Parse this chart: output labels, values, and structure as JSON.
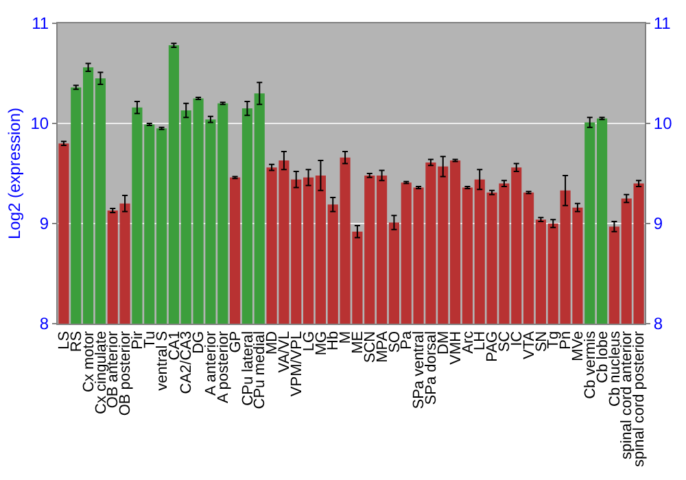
{
  "chart_data": {
    "type": "bar",
    "ylabel": "Log2 (expression)",
    "categories": [
      "LS",
      "RS",
      "Cx motor",
      "Cx cingulate",
      "OB anterior",
      "OB posterior",
      "Pir",
      "Tu",
      "ventral S",
      "CA1",
      "CA2/CA3",
      "DG",
      "A anterior",
      "A posterior",
      "GP",
      "CPu lateral",
      "CPu medial",
      "MD",
      "VA/VL",
      "VPM/VPL",
      "LG",
      "MG",
      "Hb",
      "M",
      "ME",
      "SCN",
      "MPA",
      "SO",
      "Pa",
      "SPa ventral",
      "SPa dorsal",
      "DM",
      "VMH",
      "Arc",
      "LH",
      "PAG",
      "SC",
      "IC",
      "VTA",
      "SN",
      "Tg",
      "Pn",
      "MVe",
      "Cb vermis",
      "Cb lobe",
      "Cb nucleus",
      "spinal cord anterior",
      "spinal cord posterior"
    ],
    "values": [
      9.8,
      10.36,
      10.56,
      10.45,
      9.13,
      9.2,
      10.16,
      9.99,
      9.95,
      10.78,
      10.13,
      10.25,
      10.04,
      10.2,
      9.46,
      10.15,
      10.3,
      9.56,
      9.63,
      9.44,
      9.46,
      9.48,
      9.19,
      9.66,
      8.92,
      9.48,
      9.48,
      9.01,
      9.41,
      9.36,
      9.61,
      9.57,
      9.63,
      9.36,
      9.44,
      9.31,
      9.4,
      9.56,
      9.31,
      9.04,
      9.0,
      9.33,
      9.16,
      10.01,
      10.05,
      8.97,
      9.25,
      9.4
    ],
    "errors": [
      0.02,
      0.02,
      0.04,
      0.06,
      0.02,
      0.08,
      0.06,
      0.01,
      0.01,
      0.02,
      0.07,
      0.01,
      0.03,
      0.01,
      0.01,
      0.07,
      0.11,
      0.03,
      0.09,
      0.08,
      0.08,
      0.15,
      0.07,
      0.06,
      0.06,
      0.02,
      0.05,
      0.07,
      0.01,
      0.01,
      0.03,
      0.1,
      0.01,
      0.01,
      0.1,
      0.02,
      0.03,
      0.04,
      0.01,
      0.02,
      0.04,
      0.15,
      0.04,
      0.05,
      0.01,
      0.05,
      0.04,
      0.03
    ],
    "colors": [
      "#b83232",
      "#3c9e3c",
      "#3c9e3c",
      "#3c9e3c",
      "#b83232",
      "#b83232",
      "#3c9e3c",
      "#3c9e3c",
      "#3c9e3c",
      "#3c9e3c",
      "#3c9e3c",
      "#3c9e3c",
      "#3c9e3c",
      "#3c9e3c",
      "#b83232",
      "#3c9e3c",
      "#3c9e3c",
      "#b83232",
      "#b83232",
      "#b83232",
      "#b83232",
      "#b83232",
      "#b83232",
      "#b83232",
      "#b83232",
      "#b83232",
      "#b83232",
      "#b83232",
      "#b83232",
      "#b83232",
      "#b83232",
      "#b83232",
      "#b83232",
      "#b83232",
      "#b83232",
      "#b83232",
      "#b83232",
      "#b83232",
      "#b83232",
      "#b83232",
      "#b83232",
      "#b83232",
      "#b83232",
      "#3c9e3c",
      "#3c9e3c",
      "#b83232",
      "#b83232",
      "#b83232"
    ],
    "ylim": [
      8,
      11
    ],
    "yticks": [
      8,
      9,
      10,
      11
    ],
    "y2lim": [
      8,
      11
    ],
    "y2ticks": [
      8,
      9,
      10,
      11
    ],
    "grid": "y"
  }
}
